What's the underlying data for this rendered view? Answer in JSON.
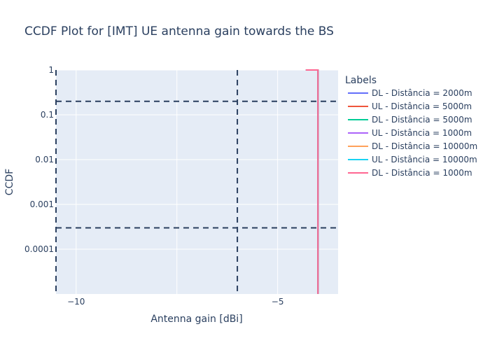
{
  "chart_data": {
    "type": "line",
    "title": "CCDF Plot for [IMT] UE antenna gain towards the BS",
    "xlabel": "Antenna gain [dBi]",
    "ylabel": "CCDF",
    "x_scale": "linear",
    "y_scale": "log",
    "xlim": [
      -10.5,
      -3.5
    ],
    "ylim": [
      1e-05,
      1
    ],
    "x_ticks": [
      {
        "value": -10,
        "label": "−10"
      },
      {
        "value": -5,
        "label": "−5"
      }
    ],
    "y_ticks": [
      {
        "value": 1,
        "label": "1"
      },
      {
        "value": 0.1,
        "label": "0.1"
      },
      {
        "value": 0.01,
        "label": "0.01"
      },
      {
        "value": 0.001,
        "label": "0.001"
      },
      {
        "value": 0.0001,
        "label": "0.0001"
      }
    ],
    "x_minor_grid": [
      -7.5
    ],
    "grid": true,
    "legend": {
      "title": "Labels",
      "placement": "right",
      "entries": [
        {
          "name": "DL - Distância = 2000m",
          "color": "#636efa"
        },
        {
          "name": "UL - Distância = 5000m",
          "color": "#EF553B"
        },
        {
          "name": "DL - Distância = 5000m",
          "color": "#00cc96"
        },
        {
          "name": "UL - Distância = 1000m",
          "color": "#ab63fa"
        },
        {
          "name": "DL - Distância = 10000m",
          "color": "#FFA15A"
        },
        {
          "name": "UL - Distância = 10000m",
          "color": "#19d3f3"
        },
        {
          "name": "DL - Distância = 1000m",
          "color": "#FF6692"
        }
      ]
    },
    "series": [
      {
        "name": "DL - Distância = 2000m",
        "color": "#636efa",
        "points": [
          [
            -4.3,
            1
          ],
          [
            -4.0,
            1
          ],
          [
            -4.0,
            1e-05
          ]
        ]
      },
      {
        "name": "UL - Distância = 5000m",
        "color": "#EF553B",
        "points": [
          [
            -4.3,
            1
          ],
          [
            -4.0,
            1
          ],
          [
            -4.0,
            1e-05
          ]
        ]
      },
      {
        "name": "DL - Distância = 5000m",
        "color": "#00cc96",
        "points": [
          [
            -4.3,
            1
          ],
          [
            -4.0,
            1
          ],
          [
            -4.0,
            1e-05
          ]
        ]
      },
      {
        "name": "UL - Distância = 1000m",
        "color": "#ab63fa",
        "points": [
          [
            -4.3,
            1
          ],
          [
            -4.0,
            1
          ],
          [
            -4.0,
            1e-05
          ]
        ]
      },
      {
        "name": "DL - Distância = 10000m",
        "color": "#FFA15A",
        "points": [
          [
            -4.3,
            1
          ],
          [
            -4.0,
            1
          ],
          [
            -4.0,
            1e-05
          ]
        ]
      },
      {
        "name": "UL - Distância = 10000m",
        "color": "#19d3f3",
        "points": [
          [
            -4.3,
            1
          ],
          [
            -4.0,
            1
          ],
          [
            -4.0,
            1e-05
          ]
        ]
      },
      {
        "name": "DL - Distância = 1000m",
        "color": "#FF6692",
        "points": [
          [
            -4.3,
            1
          ],
          [
            -4.0,
            1
          ],
          [
            -4.0,
            1e-05
          ]
        ]
      }
    ],
    "reference_lines": {
      "vertical_x": [
        -10.5,
        -6.0
      ],
      "horizontal_y": [
        0.2,
        0.0003
      ],
      "color": "#2a3f5f",
      "style": "dashed"
    }
  }
}
